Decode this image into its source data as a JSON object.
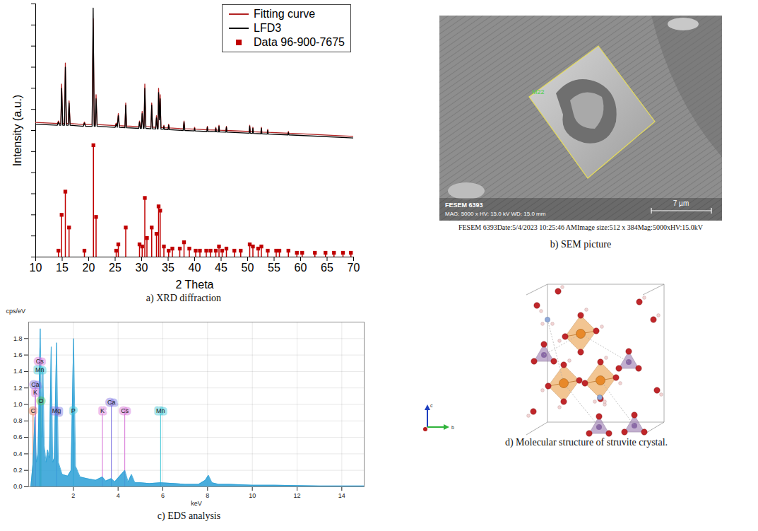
{
  "chart_data": [
    {
      "type": "line",
      "title": "a) XRD diffraction",
      "x_label": "2 Theta",
      "y_label": "Intensity (a.u.)",
      "xlim": [
        10,
        70
      ],
      "xticks": [
        10,
        15,
        20,
        25,
        30,
        35,
        40,
        45,
        50,
        55,
        60,
        65,
        70
      ],
      "ylim": [
        0,
        120
      ],
      "yticks": [
        0,
        10,
        20,
        30,
        40,
        50,
        60,
        70,
        80,
        90,
        100,
        110,
        120
      ],
      "tick_labels": "x",
      "legend": "top-right",
      "series": [
        {
          "name": "Fitting curve",
          "color": "#b22222",
          "x": [
            10,
            14.1,
            14.3,
            14.5,
            14.75,
            14.9,
            15.1,
            15.45,
            15.6,
            15.8,
            16.15,
            16.3,
            16.5,
            19.0,
            19.2,
            19.4,
            20.65,
            20.85,
            21.05,
            21.25,
            21.4,
            21.6,
            25.0,
            25.2,
            25.4,
            25.6,
            25.8,
            26.85,
            27.0,
            27.15,
            29.45,
            29.6,
            29.75,
            29.95,
            30.1,
            30.3,
            30.45,
            30.6,
            30.8,
            31.75,
            31.9,
            32.05,
            32.65,
            32.8,
            32.95,
            33.1,
            33.2,
            33.35,
            33.5,
            33.65,
            34.1,
            34.2,
            34.3,
            35.0,
            35.1,
            35.25,
            37.85,
            38.0,
            38.15,
            39.9,
            40.0,
            40.1,
            42.3,
            42.4,
            42.5,
            43.9,
            44.0,
            44.1,
            44.5,
            44.6,
            44.7,
            45.9,
            46.0,
            46.1,
            50.3,
            50.4,
            50.5,
            50.9,
            51.0,
            51.1,
            52.5,
            52.6,
            52.7,
            53.7,
            53.8,
            53.9,
            57.6,
            57.7,
            57.8,
            70
          ],
          "values": [
            63.8,
            63.3,
            64.5,
            63.3,
            63.3,
            82,
            63.3,
            63.3,
            92,
            63.3,
            63.3,
            74,
            63.3,
            62.8,
            64,
            62.8,
            62.8,
            113,
            62.8,
            62.8,
            77,
            62.8,
            62.3,
            63.5,
            62.3,
            68,
            62.3,
            62.1,
            73,
            62.1,
            61.8,
            64.5,
            61.8,
            61.8,
            69,
            61.8,
            61.8,
            82,
            61.8,
            61.6,
            73,
            61.6,
            61.5,
            67,
            61.5,
            61.5,
            80,
            66,
            77,
            61.4,
            61.4,
            62.5,
            61.3,
            61.2,
            63,
            61.2,
            60.8,
            64.5,
            60.8,
            60.6,
            61.5,
            60.6,
            60.3,
            62,
            60.3,
            60.2,
            61.5,
            60.2,
            60.1,
            62.5,
            60.1,
            60,
            62,
            60,
            59.5,
            62.5,
            59.5,
            59.4,
            61.5,
            59.4,
            59.2,
            61.5,
            59.2,
            59.1,
            60.5,
            59.1,
            58.7,
            59.5,
            58.7,
            57.2
          ]
        },
        {
          "name": "LFD3",
          "color": "#000000",
          "x": [
            10,
            14.1,
            14.3,
            14.5,
            14.75,
            14.9,
            15.1,
            15.45,
            15.6,
            15.8,
            16.15,
            16.3,
            16.5,
            19.0,
            19.2,
            19.4,
            20.65,
            20.85,
            21.05,
            21.25,
            21.4,
            21.6,
            25.0,
            25.2,
            25.4,
            25.6,
            25.8,
            26.85,
            27.0,
            27.15,
            29.45,
            29.6,
            29.75,
            29.95,
            30.1,
            30.3,
            30.45,
            30.6,
            30.8,
            31.75,
            31.9,
            32.05,
            32.65,
            32.8,
            32.95,
            33.1,
            33.2,
            33.35,
            33.5,
            33.65,
            34.1,
            34.2,
            34.3,
            35.0,
            35.1,
            35.25,
            37.85,
            38.0,
            38.15,
            39.9,
            40.0,
            40.1,
            42.3,
            42.4,
            42.5,
            43.9,
            44.0,
            44.1,
            44.5,
            44.6,
            44.7,
            45.9,
            46.0,
            46.1,
            50.3,
            50.4,
            50.5,
            50.9,
            51.0,
            51.1,
            52.5,
            52.6,
            52.7,
            53.7,
            53.8,
            53.9,
            57.6,
            57.7,
            57.8,
            70
          ],
          "values": [
            63,
            62.5,
            64,
            62.5,
            62.5,
            80,
            62.5,
            62.5,
            90,
            62.5,
            62.5,
            73,
            62.5,
            62,
            63.5,
            62,
            62,
            118,
            62,
            62,
            75,
            62,
            61.5,
            63,
            61.5,
            67,
            61.5,
            61.3,
            72,
            61.3,
            61,
            64,
            61,
            61,
            68,
            61,
            61,
            80,
            61,
            60.8,
            72,
            60.8,
            60.7,
            66,
            60.7,
            60.7,
            78,
            65,
            75,
            60.6,
            60.6,
            62,
            60.5,
            60.4,
            62.5,
            60.4,
            60,
            64,
            60,
            59.8,
            61,
            59.8,
            59.5,
            61.5,
            59.5,
            59.4,
            61,
            59.4,
            59.3,
            62,
            59.3,
            59.2,
            61.5,
            59.2,
            58.7,
            62,
            58.7,
            58.6,
            61,
            58.6,
            58.4,
            61,
            58.4,
            58.3,
            60,
            58.3,
            57.9,
            59,
            57.9,
            56.4
          ]
        },
        {
          "name": "Data 96-900-7675",
          "type": "stem",
          "color": "#c00000",
          "marker": "square",
          "x": [
            14.3,
            14.9,
            15.6,
            16.3,
            19.2,
            20.9,
            21.4,
            25.2,
            25.6,
            27.0,
            29.6,
            30.1,
            30.6,
            31.0,
            31.9,
            32.8,
            33.2,
            33.5,
            34.2,
            35.1,
            35.8,
            37.2,
            38.0,
            39.0,
            40.2,
            41.0,
            42.2,
            43.0,
            44.0,
            44.6,
            45.2,
            46.0,
            47.5,
            48.7,
            50.4,
            51.0,
            52.0,
            52.6,
            53.8,
            55.4,
            56.0,
            57.7,
            59.3,
            60.3,
            62.7,
            64.7,
            66.3,
            68.0,
            69.5
          ],
          "values": [
            3,
            20,
            31,
            14,
            3,
            53,
            19,
            3,
            6,
            14,
            6,
            5,
            28,
            9,
            14,
            11,
            24,
            22,
            5,
            3,
            4,
            4,
            7,
            4,
            3,
            3,
            3,
            3,
            3,
            5,
            3,
            4,
            3,
            3,
            6,
            5,
            4,
            5,
            3,
            3,
            3,
            3,
            2,
            2,
            2,
            2,
            2,
            2,
            2
          ]
        }
      ]
    },
    {
      "type": "area",
      "title": "c) EDS analysis",
      "x_label": "keV",
      "y_label": "cps/eV",
      "xlim": [
        0,
        15
      ],
      "xticks": [
        2,
        4,
        6,
        8,
        10,
        12,
        14
      ],
      "ylim": [
        0,
        2.0
      ],
      "yticks": [
        {
          "value": 0,
          "label": "0.0"
        },
        0.2,
        0.4,
        0.6,
        0.8,
        {
          "value": 1,
          "label": "1.0"
        },
        1.2,
        1.4,
        1.6,
        1.8
      ],
      "grid": true,
      "color": "#2a9fd6",
      "x": [
        0.1,
        0.2,
        0.28,
        0.35,
        0.42,
        0.52,
        0.6,
        0.64,
        0.7,
        0.78,
        0.85,
        0.93,
        1.01,
        1.08,
        1.15,
        1.25,
        1.33,
        1.5,
        1.75,
        1.9,
        2.01,
        2.1,
        2.3,
        2.6,
        3.0,
        3.3,
        3.45,
        3.7,
        3.85,
        4.3,
        4.45,
        4.6,
        4.75,
        5.0,
        5.4,
        5.9,
        6.5,
        7.0,
        7.6,
        7.9,
        8.04,
        8.2,
        8.5,
        9.0,
        10,
        11,
        12,
        13,
        14,
        15
      ],
      "values": [
        0,
        0.3,
        0.85,
        0.3,
        0.4,
        1.92,
        0.6,
        1.45,
        0.5,
        0.3,
        0.45,
        0.35,
        1.7,
        0.3,
        0.35,
        1.75,
        0.3,
        0.15,
        0.13,
        0.2,
        1.8,
        0.25,
        0.12,
        0.1,
        0.08,
        0.12,
        0.07,
        0.1,
        0.06,
        0.2,
        0.06,
        0.15,
        0.05,
        0.05,
        0.04,
        0.05,
        0.04,
        0.03,
        0.03,
        0.08,
        0.14,
        0.05,
        0.03,
        0.03,
        0.02,
        0.02,
        0.015,
        0.01,
        0.01,
        0.01
      ],
      "annotations": [
        {
          "text": "Cs",
          "x": 0.5,
          "y": 1.48,
          "color": "#d66fd6"
        },
        {
          "text": "Mn",
          "x": 0.5,
          "y": 1.38,
          "color": "#3cc6d6"
        },
        {
          "text": "Ca",
          "x": 0.3,
          "y": 1.2,
          "color": "#7a6fe0"
        },
        {
          "text": "K",
          "x": 0.3,
          "y": 1.1,
          "color": "#d66fd6"
        },
        {
          "text": "O",
          "x": 0.55,
          "y": 1.0,
          "color": "#4cbf4c"
        },
        {
          "text": "C",
          "x": 0.2,
          "y": 0.88,
          "color": "#e0704c"
        },
        {
          "text": "Mg",
          "x": 1.25,
          "y": 0.88,
          "color": "#7a6fe0"
        },
        {
          "text": "P",
          "x": 2.0,
          "y": 0.88,
          "color": "#3cc6d6"
        },
        {
          "text": "K",
          "x": 3.3,
          "y": 0.88,
          "color": "#d66fd6"
        },
        {
          "text": "Ca",
          "x": 3.7,
          "y": 0.98,
          "color": "#7a6fe0"
        },
        {
          "text": "Cs",
          "x": 4.3,
          "y": 0.88,
          "color": "#d66fd6"
        },
        {
          "text": "Mn",
          "x": 5.9,
          "y": 0.88,
          "color": "#3cc6d6"
        }
      ]
    }
  ],
  "sem": {
    "title": "b) SEM picture",
    "image_texts": [
      "FESEM 6393",
      "MAG: 5000 x HV: 15.0 kV WD: 15.0 mm"
    ],
    "scale_bar": "7 µm",
    "region_label": "M22",
    "info_line": "FESEM 6393Date:5/4/2023 10:25:46 AMImage size:512 x 384Mag:5000xHV:15.0kV"
  },
  "structure": {
    "title": "d) Molecular structure of struvite crystal.",
    "axis_labels": [
      "c",
      "b"
    ]
  }
}
